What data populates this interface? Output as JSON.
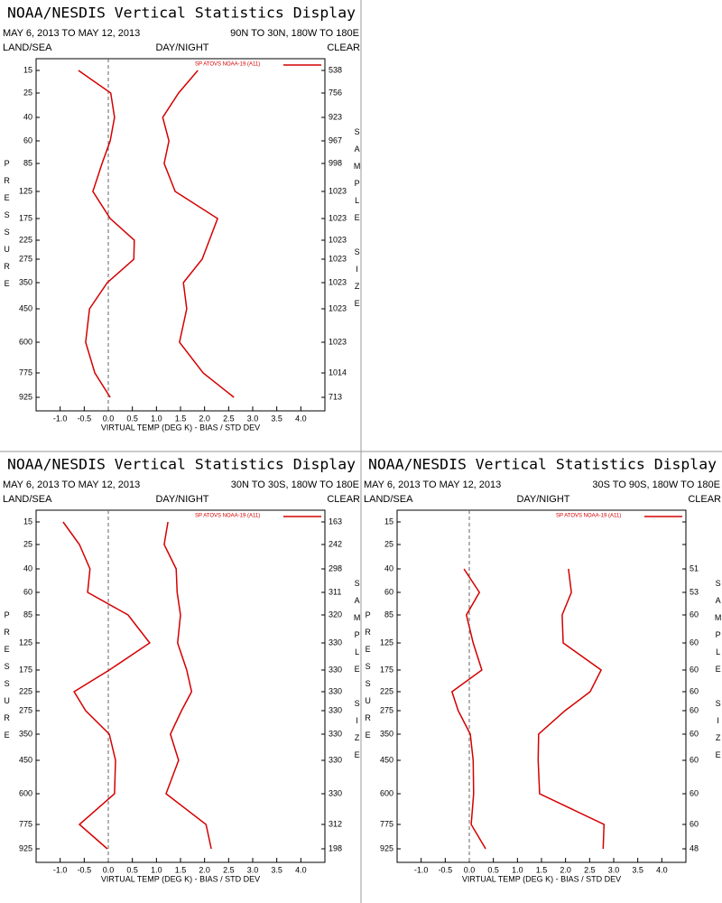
{
  "chart_data": [
    {
      "type": "line",
      "title": "NOAA/NESDIS Vertical Statistics Display",
      "date_range": "MAY 6, 2013 TO MAY 12, 2013",
      "region": "90N TO 30N, 180W TO 180E",
      "land_sea": "LAND/SEA",
      "day_night": "DAY/NIGHT",
      "clear": "CLEAR",
      "ylabel": "PRESSURE",
      "y2label": "SAMPLE SIZE",
      "xlabel": "VIRTUAL TEMP (DEG K) - BIAS / STD DEV",
      "categories": [
        "15",
        "25",
        "40",
        "60",
        "85",
        "125",
        "175",
        "225",
        "275",
        "350",
        "450",
        "600",
        "775",
        "925"
      ],
      "series": [
        {
          "name": "SP ATOVS NOAA-19 (A11)",
          "color": "#d40000",
          "values": [
            -0.62,
            0.05,
            0.13,
            0.04,
            -0.13,
            -0.32,
            0.04,
            0.54,
            0.53,
            -0.02,
            -0.39,
            -0.47,
            -0.28,
            0.04
          ],
          "std_values": [
            1.86,
            1.46,
            1.13,
            1.26,
            1.16,
            1.39,
            2.27,
            2.1,
            1.95,
            1.56,
            1.63,
            1.48,
            1.97,
            2.61
          ]
        }
      ],
      "sample_sizes": [
        538,
        756,
        923,
        967,
        998,
        1023,
        1023,
        1023,
        1023,
        1023,
        1023,
        1023,
        1014,
        713
      ],
      "xlim": [
        -1.5,
        4.5
      ],
      "xticks": [
        {
          "value": -1,
          "label": "-1.0"
        },
        {
          "value": -0.5,
          "label": "-0.5"
        },
        {
          "value": 0,
          "label": "0.0"
        },
        {
          "value": 0.5,
          "label": "0.5"
        },
        {
          "value": 1,
          "label": "1.0"
        },
        {
          "value": 1.5,
          "label": "1.5"
        },
        {
          "value": 2,
          "label": "2.0"
        },
        {
          "value": 2.5,
          "label": "2.5"
        },
        {
          "value": 3,
          "label": "3.0"
        },
        {
          "value": 3.5,
          "label": "3.5"
        },
        {
          "value": 4,
          "label": "4.0"
        }
      ]
    },
    {
      "type": "line",
      "title": "NOAA/NESDIS Vertical Statistics Display",
      "date_range": "MAY 6, 2013 TO MAY 12, 2013",
      "region": "30N TO 30S, 180W TO 180E",
      "land_sea": "LAND/SEA",
      "day_night": "DAY/NIGHT",
      "clear": "CLEAR",
      "ylabel": "PRESSURE",
      "y2label": "SAMPLE SIZE",
      "xlabel": "VIRTUAL TEMP (DEG K) - BIAS / STD DEV",
      "categories": [
        "15",
        "25",
        "40",
        "60",
        "85",
        "125",
        "175",
        "225",
        "275",
        "350",
        "450",
        "600",
        "775",
        "925"
      ],
      "series": [
        {
          "name": "SP ATOVS NOAA-19 (A11)",
          "color": "#d40000",
          "values": [
            -0.94,
            -0.6,
            -0.38,
            -0.43,
            0.41,
            0.86,
            0.02,
            -0.71,
            -0.47,
            0.02,
            0.15,
            0.13,
            -0.6,
            -0.02
          ],
          "std_values": [
            1.24,
            1.16,
            1.41,
            1.43,
            1.5,
            1.44,
            1.63,
            1.73,
            1.52,
            1.29,
            1.46,
            1.2,
            2.03,
            2.14
          ]
        }
      ],
      "sample_sizes": [
        163,
        242,
        298,
        311,
        320,
        330,
        330,
        330,
        330,
        330,
        330,
        330,
        312,
        198
      ],
      "xlim": [
        -1.5,
        4.5
      ],
      "xticks": [
        {
          "value": -1,
          "label": "-1.0"
        },
        {
          "value": -0.5,
          "label": "-0.5"
        },
        {
          "value": 0,
          "label": "0.0"
        },
        {
          "value": 0.5,
          "label": "0.5"
        },
        {
          "value": 1,
          "label": "1.0"
        },
        {
          "value": 1.5,
          "label": "1.5"
        },
        {
          "value": 2,
          "label": "2.0"
        },
        {
          "value": 2.5,
          "label": "2.5"
        },
        {
          "value": 3,
          "label": "3.0"
        },
        {
          "value": 3.5,
          "label": "3.5"
        },
        {
          "value": 4,
          "label": "4.0"
        }
      ]
    },
    {
      "type": "line",
      "title": "NOAA/NESDIS Vertical Statistics Display",
      "date_range": "MAY 6, 2013 TO MAY 12, 2013",
      "region": "30S TO 90S, 180W TO 180E",
      "land_sea": "LAND/SEA",
      "day_night": "DAY/NIGHT",
      "clear": "CLEAR",
      "ylabel": "PRESSURE",
      "y2label": "SAMPLE SIZE",
      "xlabel": "VIRTUAL TEMP (DEG K) - BIAS / STD DEV",
      "categories": [
        "15",
        "25",
        "40",
        "60",
        "85",
        "125",
        "175",
        "225",
        "275",
        "350",
        "450",
        "600",
        "775",
        "925"
      ],
      "series": [
        {
          "name": "SP ATOVS NOAA-19 (A11)",
          "color": "#d40000",
          "values": [
            null,
            null,
            -0.11,
            0.21,
            -0.06,
            0.08,
            0.26,
            -0.36,
            -0.23,
            0.02,
            0.08,
            0.09,
            0.04,
            0.34
          ],
          "std_values": [
            null,
            null,
            2.06,
            2.12,
            1.93,
            1.95,
            2.74,
            2.51,
            1.99,
            1.44,
            1.43,
            1.46,
            2.8,
            2.78
          ]
        }
      ],
      "sample_sizes": [
        null,
        null,
        51,
        53,
        60,
        60,
        60,
        60,
        60,
        60,
        60,
        60,
        60,
        48
      ],
      "xlim": [
        -1.5,
        4.5
      ],
      "xticks": [
        {
          "value": -1,
          "label": "-1.0"
        },
        {
          "value": -0.5,
          "label": "-0.5"
        },
        {
          "value": 0,
          "label": "0.0"
        },
        {
          "value": 0.5,
          "label": "0.5"
        },
        {
          "value": 1,
          "label": "1.0"
        },
        {
          "value": 1.5,
          "label": "1.5"
        },
        {
          "value": 2,
          "label": "2.0"
        },
        {
          "value": 2.5,
          "label": "2.5"
        },
        {
          "value": 3,
          "label": "3.0"
        },
        {
          "value": 3.5,
          "label": "3.5"
        },
        {
          "value": 4,
          "label": "4.0"
        }
      ]
    }
  ]
}
